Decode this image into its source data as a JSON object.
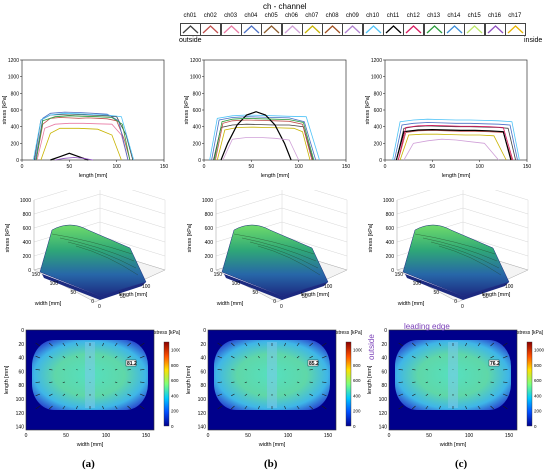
{
  "legend": {
    "title": "ch - channel",
    "outside_label": "outside",
    "inside_label": "inside",
    "channels": [
      {
        "name": "ch01",
        "color": "#404040"
      },
      {
        "name": "ch02",
        "color": "#c0504d"
      },
      {
        "name": "ch03",
        "color": "#e87aa4"
      },
      {
        "name": "ch04",
        "color": "#4a6fc4"
      },
      {
        "name": "ch05",
        "color": "#8b5a2b"
      },
      {
        "name": "ch06",
        "color": "#d0a0d8"
      },
      {
        "name": "ch07",
        "color": "#c8b400"
      },
      {
        "name": "ch08",
        "color": "#a05020"
      },
      {
        "name": "ch09",
        "color": "#b080d0"
      },
      {
        "name": "ch10",
        "color": "#4fc3f7"
      },
      {
        "name": "ch11",
        "color": "#000000"
      },
      {
        "name": "ch12",
        "color": "#d81b60"
      },
      {
        "name": "ch13",
        "color": "#2e9e3e"
      },
      {
        "name": "ch14",
        "color": "#3d8fd8"
      },
      {
        "name": "ch15",
        "color": "#bde86a"
      },
      {
        "name": "ch16",
        "color": "#9050c0"
      },
      {
        "name": "ch17",
        "color": "#e8b400"
      }
    ]
  },
  "panel_labels": [
    "(a)",
    "(b)",
    "(c)"
  ],
  "leading_edge_label": "leading edge",
  "outside_side_label": "outside",
  "chart_data": [
    {
      "type": "line",
      "panel": "a",
      "xlabel": "length [mm]",
      "ylabel": "stress [kPa]",
      "xlim": [
        0,
        150
      ],
      "ylim": [
        0,
        1200
      ],
      "xticks": [
        0,
        50,
        100,
        150
      ],
      "yticks": [
        0,
        200,
        400,
        600,
        800,
        1000,
        1200
      ],
      "series": [
        {
          "color": "#404040",
          "x": [
            13,
            20,
            30,
            40,
            50,
            60,
            70,
            80,
            90,
            100,
            110,
            117
          ],
          "y": [
            0,
            480,
            540,
            545,
            540,
            545,
            540,
            535,
            530,
            520,
            300,
            0
          ]
        },
        {
          "color": "#c0504d",
          "x": [
            15,
            22,
            30,
            40,
            50,
            60,
            70,
            80,
            90,
            100,
            108,
            114
          ],
          "y": [
            0,
            430,
            500,
            510,
            505,
            500,
            505,
            500,
            495,
            470,
            250,
            0
          ]
        },
        {
          "color": "#e87aa4",
          "x": [
            16,
            24,
            35,
            50,
            65,
            80,
            95,
            105,
            112
          ],
          "y": [
            0,
            380,
            430,
            440,
            440,
            435,
            430,
            300,
            0
          ]
        },
        {
          "color": "#4a6fc4",
          "x": [
            14,
            22,
            30,
            45,
            60,
            75,
            90,
            102,
            112
          ],
          "y": [
            0,
            500,
            560,
            575,
            570,
            560,
            550,
            470,
            0
          ]
        },
        {
          "color": "#c8b400",
          "x": [
            20,
            30,
            40,
            60,
            80,
            95,
            105
          ],
          "y": [
            0,
            320,
            380,
            380,
            370,
            300,
            0
          ]
        },
        {
          "color": "#4fc3f7",
          "x": [
            12,
            20,
            30,
            45,
            60,
            75,
            90,
            105,
            118
          ],
          "y": [
            0,
            480,
            540,
            560,
            555,
            545,
            540,
            520,
            0
          ]
        },
        {
          "color": "#000000",
          "x": [
            30,
            40,
            50,
            60,
            70
          ],
          "y": [
            0,
            40,
            80,
            40,
            0
          ]
        },
        {
          "color": "#2e9e3e",
          "x": [
            15,
            22,
            35,
            50,
            65,
            80,
            95,
            106,
            114
          ],
          "y": [
            0,
            470,
            520,
            530,
            525,
            520,
            510,
            430,
            0
          ]
        },
        {
          "color": "#9050c0",
          "x": [
            35,
            45,
            55,
            65,
            75
          ],
          "y": [
            0,
            20,
            30,
            20,
            0
          ]
        }
      ]
    },
    {
      "type": "line",
      "panel": "b",
      "xlabel": "length [mm]",
      "ylabel": "stress [kPa]",
      "xlim": [
        0,
        150
      ],
      "ylim": [
        0,
        1200
      ],
      "xticks": [
        0,
        50,
        100,
        150
      ],
      "yticks": [
        0,
        200,
        400,
        600,
        800,
        1000,
        1200
      ],
      "series": [
        {
          "color": "#404040",
          "x": [
            10,
            18,
            30,
            45,
            60,
            75,
            90,
            105,
            115
          ],
          "y": [
            0,
            390,
            420,
            430,
            425,
            420,
            420,
            400,
            0
          ]
        },
        {
          "color": "#c0504d",
          "x": [
            12,
            20,
            30,
            45,
            60,
            75,
            90,
            104,
            114
          ],
          "y": [
            0,
            440,
            470,
            480,
            475,
            470,
            465,
            430,
            0
          ]
        },
        {
          "color": "#4a6fc4",
          "x": [
            8,
            16,
            30,
            45,
            60,
            75,
            90,
            106,
            118
          ],
          "y": [
            0,
            480,
            510,
            520,
            515,
            510,
            505,
            460,
            0
          ]
        },
        {
          "color": "#c8b400",
          "x": [
            14,
            22,
            35,
            50,
            65,
            80,
            95,
            104,
            112
          ],
          "y": [
            0,
            360,
            390,
            395,
            390,
            385,
            380,
            340,
            0
          ]
        },
        {
          "color": "#4fc3f7",
          "x": [
            6,
            14,
            30,
            45,
            60,
            75,
            90,
            108,
            122
          ],
          "y": [
            0,
            500,
            530,
            540,
            535,
            530,
            525,
            520,
            0
          ]
        },
        {
          "color": "#000000",
          "x": [
            18,
            25,
            35,
            45,
            55,
            65,
            75,
            85,
            92
          ],
          "y": [
            0,
            200,
            420,
            540,
            580,
            540,
            420,
            200,
            0
          ]
        },
        {
          "color": "#2e9e3e",
          "x": [
            11,
            19,
            30,
            45,
            60,
            75,
            90,
            105,
            116
          ],
          "y": [
            0,
            460,
            490,
            500,
            495,
            490,
            485,
            450,
            0
          ]
        },
        {
          "color": "#d0a0d8",
          "x": [
            20,
            30,
            45,
            60,
            75,
            90,
            100
          ],
          "y": [
            0,
            250,
            270,
            270,
            260,
            240,
            0
          ]
        }
      ]
    },
    {
      "type": "line",
      "panel": "c",
      "xlabel": "length [mm]",
      "ylabel": "stress [kPa]",
      "xlim": [
        0,
        150
      ],
      "ylim": [
        0,
        1200
      ],
      "xticks": [
        0,
        50,
        100,
        150
      ],
      "yticks": [
        0,
        200,
        400,
        600,
        800,
        1000,
        1200
      ],
      "series": [
        {
          "color": "#404040",
          "x": [
            12,
            20,
            30,
            45,
            60,
            75,
            90,
            105,
            120,
            130,
            138
          ],
          "y": [
            0,
            380,
            400,
            410,
            405,
            400,
            400,
            395,
            390,
            380,
            0
          ]
        },
        {
          "color": "#c0504d",
          "x": [
            14,
            22,
            35,
            50,
            65,
            80,
            95,
            110,
            125,
            134
          ],
          "y": [
            0,
            330,
            350,
            355,
            350,
            345,
            345,
            340,
            330,
            0
          ]
        },
        {
          "color": "#4a6fc4",
          "x": [
            10,
            18,
            30,
            45,
            60,
            75,
            90,
            105,
            120,
            132,
            140
          ],
          "y": [
            0,
            420,
            440,
            450,
            445,
            440,
            440,
            435,
            430,
            420,
            0
          ]
        },
        {
          "color": "#c8b400",
          "x": [
            16,
            25,
            40,
            55,
            70,
            85,
            100,
            115,
            128
          ],
          "y": [
            0,
            300,
            310,
            310,
            305,
            300,
            300,
            290,
            0
          ]
        },
        {
          "color": "#4fc3f7",
          "x": [
            8,
            16,
            30,
            45,
            60,
            75,
            90,
            105,
            120,
            134,
            142
          ],
          "y": [
            0,
            460,
            480,
            490,
            485,
            480,
            480,
            475,
            470,
            460,
            0
          ]
        },
        {
          "color": "#000000",
          "x": [
            12,
            20,
            35,
            50,
            65,
            80,
            95,
            110,
            125,
            133
          ],
          "y": [
            0,
            340,
            360,
            365,
            360,
            355,
            355,
            350,
            340,
            0
          ]
        },
        {
          "color": "#d81b60",
          "x": [
            14,
            22,
            35,
            50,
            65,
            80,
            95,
            110,
            125,
            135
          ],
          "y": [
            0,
            390,
            410,
            415,
            410,
            405,
            405,
            400,
            390,
            0
          ]
        },
        {
          "color": "#d0a0d8",
          "x": [
            20,
            30,
            45,
            60,
            75,
            90,
            105,
            120
          ],
          "y": [
            0,
            200,
            230,
            250,
            240,
            220,
            200,
            0
          ]
        }
      ]
    },
    {
      "type": "surface",
      "panel": "a",
      "zlabel": "stress [kPa]",
      "xlabel": "width [mm]",
      "ylabel": "length [mm]",
      "zticks": [
        0,
        200,
        400,
        600,
        800,
        1000
      ],
      "width_ticks": [
        0,
        50,
        100,
        150
      ],
      "length_ticks": [
        0,
        50,
        100
      ]
    },
    {
      "type": "surface",
      "panel": "b",
      "zlabel": "stress [kPa]",
      "xlabel": "width [mm]",
      "ylabel": "length [mm]",
      "zticks": [
        0,
        200,
        400,
        600,
        800,
        1000
      ],
      "width_ticks": [
        0,
        50,
        100,
        150
      ],
      "length_ticks": [
        0,
        50,
        100
      ]
    },
    {
      "type": "surface",
      "panel": "c",
      "zlabel": "stress [kPa]",
      "xlabel": "width [mm]",
      "ylabel": "length [mm]",
      "zticks": [
        0,
        200,
        400,
        600,
        800,
        1000
      ],
      "width_ticks": [
        0,
        50,
        100,
        150
      ],
      "length_ticks": [
        0,
        50,
        100
      ]
    },
    {
      "type": "heatmap",
      "panel": "a",
      "xlabel": "width [mm]",
      "ylabel": "length [mm]",
      "colorbar_label": "stress [kPa]",
      "xticks": [
        0,
        50,
        100,
        150
      ],
      "yticks": [
        0,
        20,
        40,
        60,
        80,
        100,
        120,
        140
      ],
      "colorbar_ticks": [
        0,
        200,
        400,
        600,
        800,
        1000
      ],
      "annotation": "81.2"
    },
    {
      "type": "heatmap",
      "panel": "b",
      "xlabel": "width [mm]",
      "ylabel": "length [mm]",
      "colorbar_label": "stress [kPa]",
      "xticks": [
        0,
        50,
        100,
        150
      ],
      "yticks": [
        0,
        20,
        40,
        60,
        80,
        100,
        120,
        140
      ],
      "colorbar_ticks": [
        0,
        200,
        400,
        600,
        800,
        1000
      ],
      "annotation": "85.2"
    },
    {
      "type": "heatmap",
      "panel": "c",
      "xlabel": "width [mm]",
      "ylabel": "length [mm]",
      "colorbar_label": "stress [kPa]",
      "xticks": [
        0,
        50,
        100,
        150
      ],
      "yticks": [
        0,
        20,
        40,
        60,
        80,
        100,
        120,
        140
      ],
      "colorbar_ticks": [
        0,
        200,
        400,
        600,
        800,
        1000
      ],
      "annotation": "76.2"
    }
  ]
}
